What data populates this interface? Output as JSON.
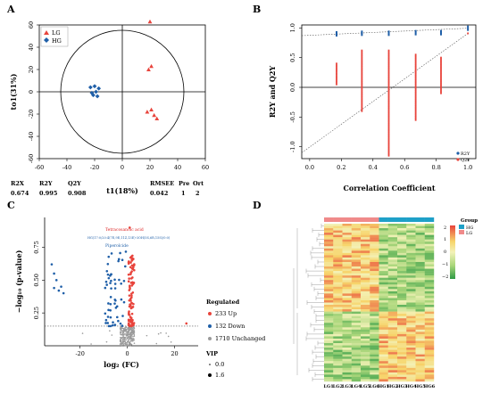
{
  "panels": {
    "A": {
      "label": "A",
      "legend": [
        "LG",
        "HG"
      ],
      "xlabel": "t1(18%)",
      "ylabel": "to1(31%)",
      "xticks": [
        "-60",
        "-40",
        "-20",
        "0",
        "20",
        "40",
        "60"
      ],
      "yticks": [
        "-60",
        "-40",
        "-20",
        "0",
        "20",
        "40",
        "60"
      ],
      "stats_headers": [
        "R2X",
        "R2Y",
        "Q2Y",
        "RMSEE",
        "Pre",
        "Ort"
      ],
      "stats_values": [
        "0.674",
        "0.995",
        "0.908",
        "0.042",
        "1",
        "2"
      ]
    },
    "B": {
      "label": "B",
      "xlabel": "Correlation Coefficient",
      "ylabel": "R2Y and Q2Y",
      "legend": [
        "R2Y",
        "Q2Y"
      ],
      "xticks": [
        "0.0",
        "0.2",
        "0.4",
        "0.6",
        "0.8",
        "1.0"
      ],
      "yticks": [
        "-1.0",
        "-0.5",
        "0.0",
        "0.5",
        "1.0"
      ]
    },
    "C": {
      "label": "C",
      "xlabel": "log₂ (FC)",
      "ylabel": "−log₁₀ (p-value)",
      "xticks": [
        "-20",
        "0",
        "20"
      ],
      "yticks": [
        "0.25",
        "0.50",
        "0.75"
      ],
      "annotations": [
        "Tetracosanoic acid",
        "HG(17:0/20:4(7E,9E,11Z,13E)-3OH(5S,6R,15S)/0:0)",
        "Piperolcide"
      ],
      "legend_title": "Regulated",
      "legend": [
        "233 Up",
        "132 Down",
        "1710 Unchanged"
      ],
      "vip_title": "VIP",
      "vip_values": [
        "0.0",
        "1.6"
      ]
    },
    "D": {
      "label": "D",
      "group_title": "Group",
      "groups": [
        "HG",
        "LG"
      ],
      "scale_ticks": [
        "2",
        "1",
        "0",
        "−1",
        "−2"
      ],
      "columns": [
        "LG1",
        "LG2",
        "LG3",
        "LG4",
        "LG5",
        "LG6",
        "HG1",
        "HG2",
        "HG3",
        "HG4",
        "HG5",
        "HG6"
      ]
    }
  },
  "chart_data": [
    {
      "type": "scatter",
      "panel": "A",
      "xlim": [
        -60,
        60
      ],
      "ylim": [
        -60,
        60
      ],
      "series": [
        {
          "name": "LG",
          "color": "#e8443c",
          "marker": "triangle",
          "points": [
            [
              20,
              63
            ],
            [
              21,
              23
            ],
            [
              19,
              20
            ],
            [
              18,
              -18
            ],
            [
              21,
              -16
            ],
            [
              23,
              -21
            ],
            [
              25,
              -24
            ]
          ]
        },
        {
          "name": "HG",
          "color": "#1f5fa8",
          "marker": "diamond",
          "points": [
            [
              -23,
              4
            ],
            [
              -20,
              5
            ],
            [
              -17,
              3
            ],
            [
              -22,
              -1
            ],
            [
              -19,
              0
            ],
            [
              -21,
              -3
            ],
            [
              -18,
              -4
            ]
          ]
        }
      ]
    },
    {
      "type": "scatter",
      "panel": "B",
      "xlim": [
        -0.05,
        1.05
      ],
      "ylim": [
        -1.2,
        1.05
      ],
      "series": [
        {
          "name": "R2Y",
          "color": "#1f5fa8",
          "x": [
            0.17,
            0.33,
            0.5,
            0.67,
            0.83,
            1.0
          ],
          "y": [
            0.9,
            0.91,
            0.91,
            0.92,
            0.92,
            0.995
          ]
        },
        {
          "name": "Q2Y",
          "color": "#e8443c",
          "x": [
            0.17,
            0.33,
            0.5,
            0.67,
            0.83,
            1.0
          ],
          "min": [
            0.05,
            -0.4,
            -1.15,
            -0.55,
            -0.1,
            0.908
          ],
          "max": [
            0.4,
            0.62,
            0.62,
            0.55,
            0.5,
            0.908
          ]
        }
      ]
    },
    {
      "type": "scatter",
      "panel": "C",
      "xlim": [
        -35,
        30
      ],
      "ylim": [
        0,
        0.95
      ],
      "threshold": 0.15,
      "counts": {
        "up": 233,
        "down": 132,
        "unchanged": 1710
      }
    },
    {
      "type": "heatmap",
      "panel": "D",
      "columns": [
        "LG1",
        "LG2",
        "LG3",
        "LG4",
        "LG5",
        "LG6",
        "HG1",
        "HG2",
        "HG3",
        "HG4",
        "HG5",
        "HG6"
      ],
      "range": [
        -2,
        2
      ]
    }
  ],
  "colors": {
    "up": "#e8443c",
    "down": "#1f5fa8",
    "unchanged": "#9a9a9a",
    "hg": "#1ea0c8",
    "lg": "#f08a8a"
  }
}
